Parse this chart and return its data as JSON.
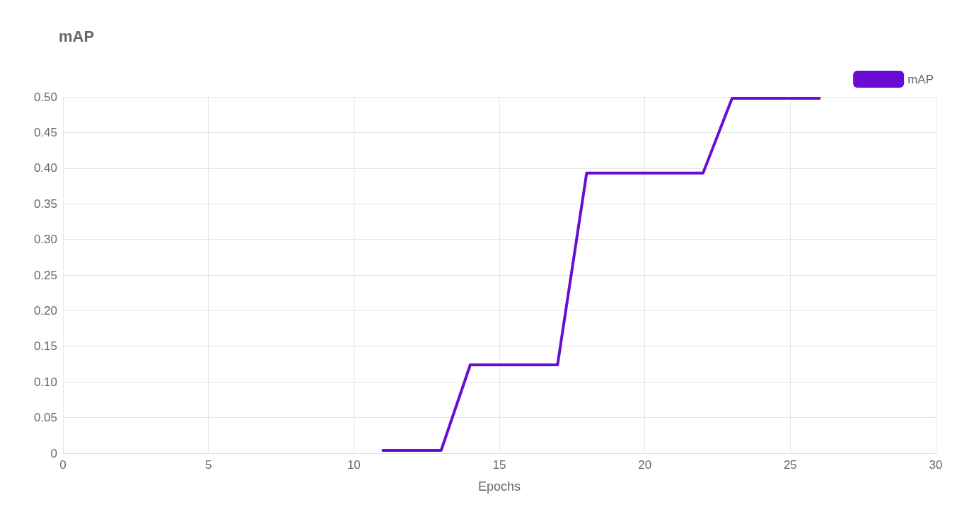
{
  "chart_data": {
    "type": "line",
    "title": "mAP",
    "xlabel": "Epochs",
    "x": [
      11,
      12,
      13,
      14,
      15,
      16,
      17,
      18,
      19,
      20,
      21,
      22,
      23,
      24,
      25,
      26
    ],
    "series": [
      {
        "name": "mAP",
        "color": "#6a0dd4",
        "values": [
          0.004,
          0.004,
          0.004,
          0.124,
          0.124,
          0.124,
          0.124,
          0.393,
          0.393,
          0.393,
          0.393,
          0.393,
          0.498,
          0.498,
          0.498,
          0.498
        ]
      }
    ],
    "xlim": [
      0,
      30
    ],
    "xticks": [
      0,
      5,
      10,
      15,
      20,
      25,
      30
    ],
    "ylim": [
      0,
      0.5
    ],
    "yticks": [
      0,
      {
        "value": 0.05,
        "label": "0.05"
      },
      {
        "value": 0.1,
        "label": "0.10"
      },
      {
        "value": 0.15,
        "label": "0.15"
      },
      {
        "value": 0.2,
        "label": "0.20"
      },
      {
        "value": 0.25,
        "label": "0.25"
      },
      {
        "value": 0.3,
        "label": "0.30"
      },
      {
        "value": 0.35,
        "label": "0.35"
      },
      {
        "value": 0.4,
        "label": "0.40"
      },
      {
        "value": 0.45,
        "label": "0.45"
      },
      {
        "value": 0.5,
        "label": "0.50"
      }
    ],
    "grid": true,
    "legend": "top right",
    "marker": "none",
    "line_style": "solid"
  }
}
